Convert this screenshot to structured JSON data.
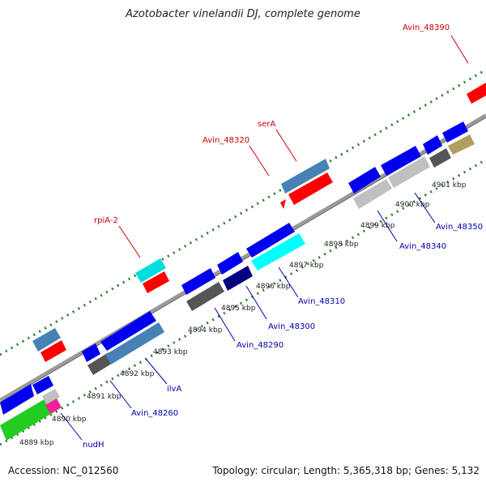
{
  "title": "Azotobacter vinelandii DJ, complete genome",
  "footer": {
    "accession": "Accession: NC_012560",
    "stats": "Topology: circular; Length: 5,365,318 bp; Genes: 5,132"
  },
  "colors": {
    "blue": "#0000ee",
    "steel": "#4682b4",
    "red": "#ff0000",
    "cyan": "#00dddd",
    "aqua": "#00ffff",
    "navy": "#000080",
    "gray": "#555555",
    "silver": "#c0c0c0",
    "khaki": "#b0a060",
    "green": "#22cc22",
    "pink": "#ee2299",
    "backbone": "#9a9a9a",
    "dots": "#2a7a2a",
    "label_red": "#cc0000",
    "label_blue": "#0000aa"
  },
  "scale_labels": [
    "4889 kbp",
    "4890 kbp",
    "4891 kbp",
    "4892 kbp",
    "4893 kbp",
    "4894 kbp",
    "4895 kbp",
    "4896 kbp",
    "4897 kbp",
    "4898 kbp",
    "4899 kbp",
    "4900 kbp",
    "4901 kbp"
  ],
  "gene_labels": {
    "avin_48390": "Avin_48390",
    "sera": "serA",
    "avin_48320": "Avin_48320",
    "rpia_2": "rpiA-2",
    "avin_48350": "Avin_48350",
    "avin_48340": "Avin_48340",
    "avin_48310": "Avin_48310",
    "avin_48300": "Avin_48300",
    "avin_48290": "Avin_48290",
    "ilva": "ilvA",
    "avin_48260": "Avin_48260",
    "nudh": "nudH"
  }
}
